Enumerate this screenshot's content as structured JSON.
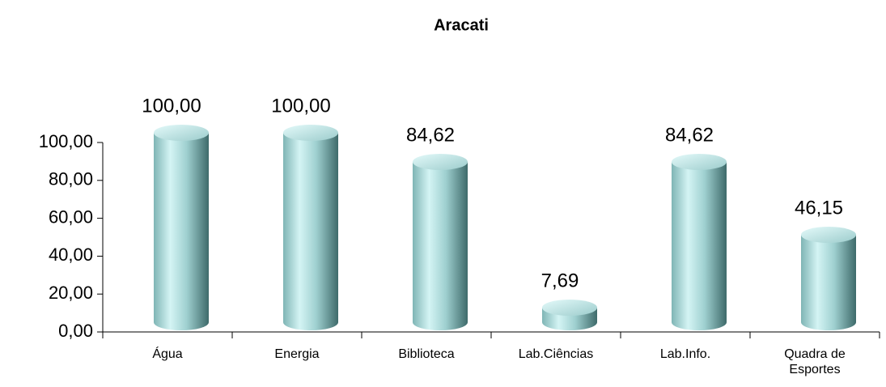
{
  "chart_data": {
    "type": "bar",
    "title": "Aracati",
    "categories": [
      "Água",
      "Energia",
      "Biblioteca",
      "Lab.Ciências",
      "Lab.Info.",
      "Quadra de Esportes"
    ],
    "values": [
      100,
      100,
      84.62,
      7.69,
      84.62,
      46.15
    ],
    "value_labels": [
      "100,00",
      "100,00",
      "84,62",
      "7,69",
      "84,62",
      "46,15"
    ],
    "color": "#8cc4c4",
    "ylim": [
      0,
      100
    ],
    "yticks": [
      {
        "value": 0,
        "label": "0,00"
      },
      {
        "value": 20,
        "label": "20,00"
      },
      {
        "value": 40,
        "label": "40,00"
      },
      {
        "value": 60,
        "label": "60,00"
      },
      {
        "value": 80,
        "label": "80,00"
      },
      {
        "value": 100,
        "label": "100,00"
      }
    ],
    "grid": false
  }
}
